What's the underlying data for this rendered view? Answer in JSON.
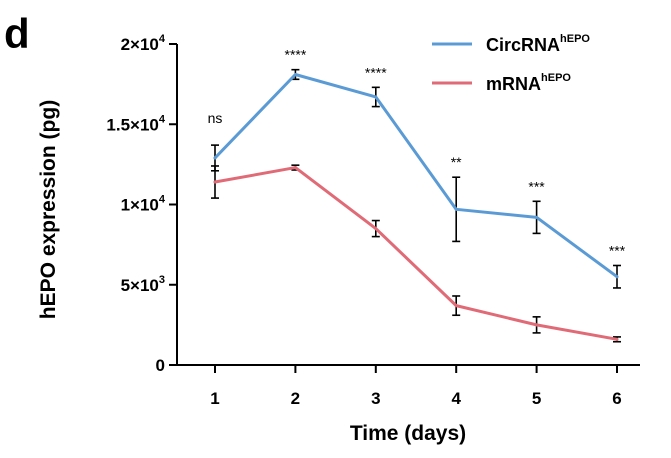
{
  "panel_label": "d",
  "colors": {
    "circ": "#5b9bd5",
    "mrna": "#e06b76",
    "axis": "#000000"
  },
  "chart_data": {
    "type": "line",
    "xlabel": "Time (days)",
    "ylabel": "hEPO expression (pg)",
    "x": [
      1,
      2,
      3,
      4,
      5,
      6
    ],
    "xlim": [
      0.5,
      6.5
    ],
    "ylim": [
      0,
      20000
    ],
    "y_ticks": [
      {
        "value": 0,
        "mantissa": "0",
        "exponent": ""
      },
      {
        "value": 5000,
        "mantissa": "5×10",
        "exponent": "3"
      },
      {
        "value": 10000,
        "mantissa": "1×10",
        "exponent": "4"
      },
      {
        "value": 15000,
        "mantissa": "1.5×10",
        "exponent": "4"
      },
      {
        "value": 20000,
        "mantissa": "2×10",
        "exponent": "4"
      }
    ],
    "series": [
      {
        "name": "CircRNA",
        "superscript": "hEPO",
        "color": "#5b9bd5",
        "values": [
          12900,
          18100,
          16700,
          9700,
          9200,
          5500
        ],
        "errors": [
          800,
          300,
          600,
          2000,
          1000,
          700
        ]
      },
      {
        "name": "mRNA",
        "superscript": "hEPO",
        "color": "#e06b76",
        "values": [
          11400,
          12300,
          8500,
          3700,
          2500,
          1600
        ],
        "errors": [
          1000,
          150,
          500,
          600,
          500,
          150
        ]
      }
    ],
    "significance": [
      "ns",
      "****",
      "****",
      "**",
      "***",
      "***"
    ],
    "legend_position": "top-right"
  }
}
